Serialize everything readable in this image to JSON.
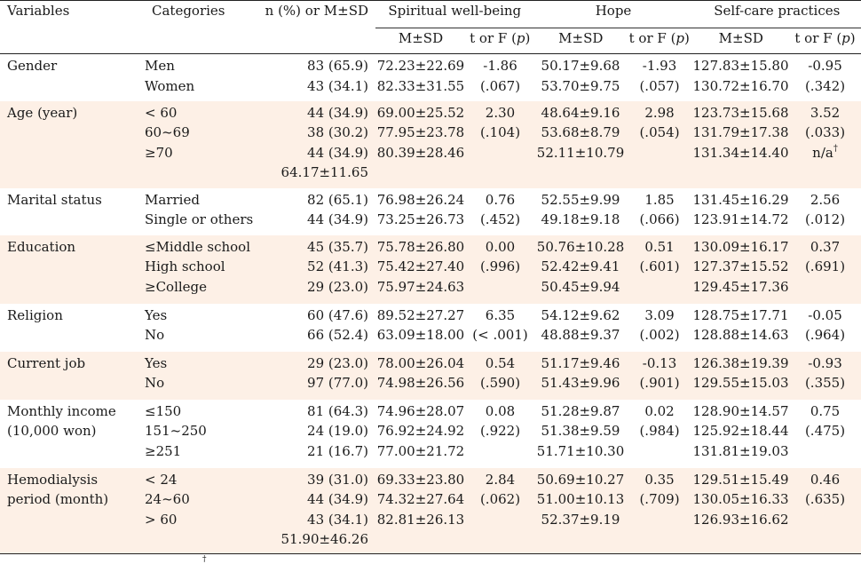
{
  "header": {
    "variables": "Variables",
    "categories": "Categories",
    "n_col": "n (%) or M±SD",
    "groups": [
      "Spiritual well-being",
      "Hope",
      "Self-care practices"
    ],
    "sub_msd": "M±SD",
    "sub_t_prefix": "t or F (",
    "sub_t_p": "p",
    "sub_t_suffix": ")"
  },
  "rows": [
    {
      "variable": "Gender",
      "categories": "Men\nWomen",
      "n": "83 (65.9)\n43 (34.1)",
      "swb_msd": "72.23±22.69\n82.33±31.55",
      "swb_t": "-1.86\n(.067)",
      "hope_msd": "50.17±9.68\n53.70±9.75",
      "hope_t": "-1.93\n(.057)",
      "sc_msd": "127.83±15.80\n130.72±16.70",
      "sc_t": "-0.95\n(.342)"
    },
    {
      "variable": "Age (year)",
      "categories": "< 60\n60~69\n≥70",
      "n": "44 (34.9)\n38 (30.2)\n44 (34.9)\n64.17±11.65",
      "swb_msd": "69.00±25.52\n77.95±23.78\n80.39±28.46",
      "swb_t": "2.30\n(.104)",
      "hope_msd": "48.64±9.16\n53.68±8.79\n52.11±10.79",
      "hope_t": "2.98\n(.054)",
      "sc_msd": "123.73±15.68\n131.79±17.38\n131.34±14.40",
      "sc_t": "3.52\n(.033)\nn/a",
      "sc_t_mark": "†"
    },
    {
      "variable": "Marital status",
      "categories": "Married\nSingle or others",
      "n": "82 (65.1)\n44 (34.9)",
      "swb_msd": "76.98±26.24\n73.25±26.73",
      "swb_t": "0.76\n(.452)",
      "hope_msd": "52.55±9.99\n49.18±9.18",
      "hope_t": "1.85\n(.066)",
      "sc_msd": "131.45±16.29\n123.91±14.72",
      "sc_t": "2.56\n(.012)"
    },
    {
      "variable": "Education",
      "categories": "≤Middle school\nHigh school\n≥College",
      "n": "45 (35.7)\n52 (41.3)\n29 (23.0)",
      "swb_msd": "75.78±26.80\n75.42±27.40\n75.97±24.63",
      "swb_t": "0.00\n(.996)",
      "hope_msd": "50.76±10.28\n52.42±9.41\n50.45±9.94",
      "hope_t": "0.51\n(.601)",
      "sc_msd": "130.09±16.17\n127.37±15.52\n129.45±17.36",
      "sc_t": "0.37\n(.691)"
    },
    {
      "variable": "Religion",
      "categories": "Yes\nNo",
      "n": "60 (47.6)\n66 (52.4)",
      "swb_msd": "89.52±27.27\n63.09±18.00",
      "swb_t": "6.35\n(< .001)",
      "hope_msd": "54.12±9.62\n48.88±9.37",
      "hope_t": "3.09\n(.002)",
      "sc_msd": "128.75±17.71\n128.88±14.63",
      "sc_t": "-0.05\n(.964)"
    },
    {
      "variable": "Current job",
      "categories": "Yes\nNo",
      "n": "29 (23.0)\n97 (77.0)",
      "swb_msd": "78.00±26.04\n74.98±26.56",
      "swb_t": "0.54\n(.590)",
      "hope_msd": "51.17±9.46\n51.43±9.96",
      "hope_t": "-0.13\n(.901)",
      "sc_msd": "126.38±19.39\n129.55±15.03",
      "sc_t": "-0.93\n(.355)"
    },
    {
      "variable": "Monthly income\n  (10,000 won)",
      "categories": "≤150\n151~250\n≥251",
      "n": "81 (64.3)\n24 (19.0)\n21 (16.7)",
      "swb_msd": "74.96±28.07\n76.92±24.92\n77.00±21.72",
      "swb_t": "0.08\n(.922)",
      "hope_msd": "51.28±9.87\n51.38±9.59\n51.71±10.30",
      "hope_t": "0.02\n(.984)",
      "sc_msd": "128.90±14.57\n125.92±18.44\n131.81±19.03",
      "sc_t": "0.75\n(.475)"
    },
    {
      "variable": "Hemodialysis\n  period (month)",
      "categories": "< 24\n24~60\n> 60",
      "n": "39 (31.0)\n44 (34.9)\n43 (34.1)\n51.90±46.26",
      "swb_msd": "69.33±23.80\n74.32±27.64\n82.81±26.13",
      "swb_t": "2.84\n(.062)",
      "hope_msd": "50.69±10.27\n51.00±10.13\n52.37±9.19",
      "hope_t": "0.35\n(.709)",
      "sc_msd": "129.51±15.49\n130.05±16.33\n126.93±16.62",
      "sc_t": "0.46\n(.635)"
    }
  ],
  "footnote_mark": "†"
}
